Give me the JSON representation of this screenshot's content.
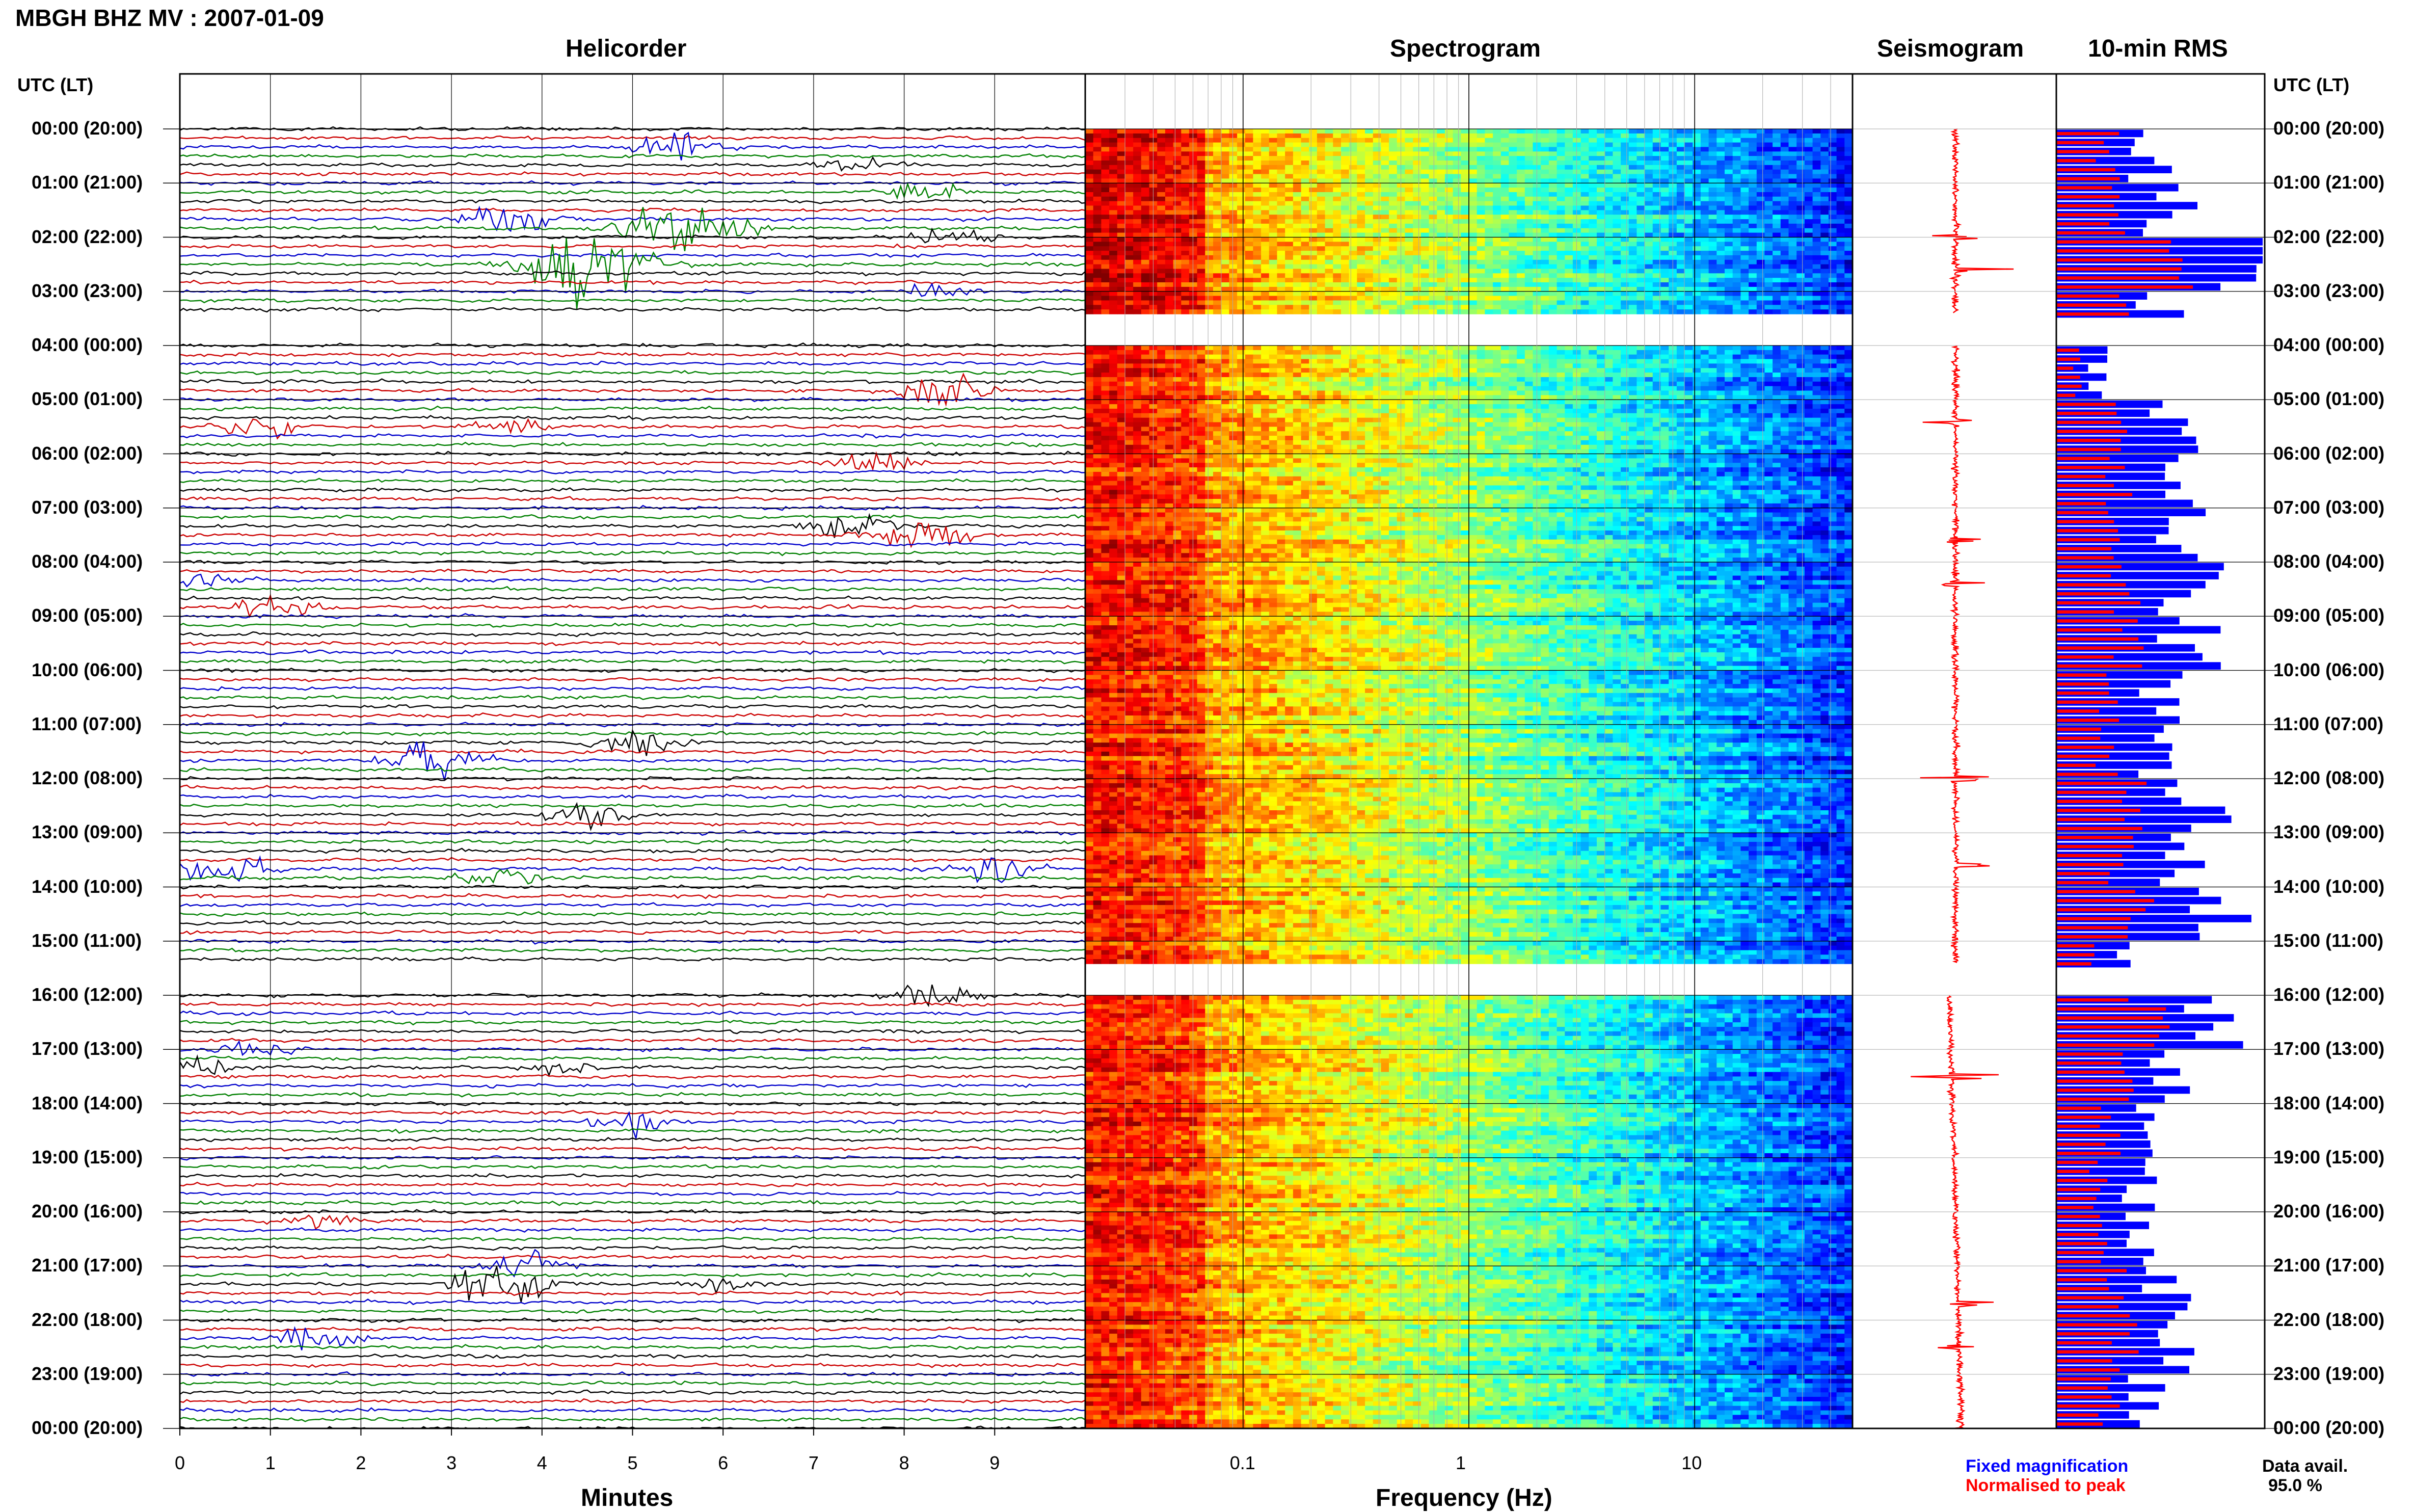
{
  "title": "MBGH BHZ MV : 2007-01-09",
  "panels": {
    "helicorder": "Helicorder",
    "spectrogram": "Spectrogram",
    "seismogram": "Seismogram",
    "rms": "10-min RMS"
  },
  "axis_header": "UTC (LT)",
  "time_labels": [
    "00:00 (20:00)",
    "01:00 (21:00)",
    "02:00 (22:00)",
    "03:00 (23:00)",
    "04:00 (00:00)",
    "05:00 (01:00)",
    "06:00 (02:00)",
    "07:00 (03:00)",
    "08:00 (04:00)",
    "09:00 (05:00)",
    "10:00 (06:00)",
    "11:00 (07:00)",
    "12:00 (08:00)",
    "13:00 (09:00)",
    "14:00 (10:00)",
    "15:00 (11:00)",
    "16:00 (12:00)",
    "17:00 (13:00)",
    "18:00 (14:00)",
    "19:00 (15:00)",
    "20:00 (16:00)",
    "21:00 (17:00)",
    "22:00 (18:00)",
    "23:00 (19:00)",
    "00:00 (20:00)"
  ],
  "legend": {
    "fixed": "Fixed magnification",
    "normalised": "Normalised to peak",
    "avail_label": "Data avail.",
    "avail_value": "95.0 %"
  },
  "colors": {
    "trace_cycle": [
      "#000000",
      "#cc0000",
      "#0000cc",
      "#008000"
    ],
    "seismogram": "#ff0000",
    "rms_fixed": "#0000ff",
    "rms_normalised": "#ff0000"
  },
  "chart_data": [
    {
      "type": "line",
      "name": "helicorder",
      "title": "Helicorder",
      "xlabel": "Minutes",
      "x_ticks": [
        0,
        1,
        2,
        3,
        4,
        5,
        6,
        7,
        8,
        9
      ],
      "xlim": [
        0,
        10
      ],
      "rows_per_hour": 6,
      "hours": 24,
      "gaps_hours": [
        [
          3.4,
          4.0
        ],
        [
          15.4,
          16.0
        ]
      ],
      "events": [
        {
          "hour": 0.3,
          "minute": 5.5,
          "amp": 1.0
        },
        {
          "hour": 0.6,
          "minute": 7.5,
          "amp": 0.9
        },
        {
          "hour": 1.2,
          "minute": 8.2,
          "amp": 0.7
        },
        {
          "hour": 1.6,
          "minute": 3.6,
          "amp": 1.2
        },
        {
          "hour": 1.8,
          "minute": 5.6,
          "amp": 2.2
        },
        {
          "hour": 2.0,
          "minute": 8.5,
          "amp": 0.7
        },
        {
          "hour": 2.5,
          "minute": 4.5,
          "amp": 2.8
        },
        {
          "hour": 3.0,
          "minute": 8.4,
          "amp": 0.6
        },
        {
          "hour": 4.9,
          "minute": 8.4,
          "amp": 1.1
        },
        {
          "hour": 5.5,
          "minute": 0.8,
          "amp": 0.8
        },
        {
          "hour": 5.5,
          "minute": 3.6,
          "amp": 0.8
        },
        {
          "hour": 6.2,
          "minute": 7.7,
          "amp": 0.8
        },
        {
          "hour": 7.3,
          "minute": 7.4,
          "amp": 1.0
        },
        {
          "hour": 7.5,
          "minute": 8.2,
          "amp": 1.3
        },
        {
          "hour": 8.3,
          "minute": 0.3,
          "amp": 0.6
        },
        {
          "hour": 8.8,
          "minute": 1.1,
          "amp": 1.0
        },
        {
          "hour": 11.3,
          "minute": 5.1,
          "amp": 0.9
        },
        {
          "hour": 11.7,
          "minute": 2.8,
          "amp": 1.3
        },
        {
          "hour": 12.6,
          "minute": 4.5,
          "amp": 0.9
        },
        {
          "hour": 13.6,
          "minute": 0.5,
          "amp": 1.0
        },
        {
          "hour": 13.6,
          "minute": 9.0,
          "amp": 1.1
        },
        {
          "hour": 13.8,
          "minute": 3.5,
          "amp": 0.7
        },
        {
          "hour": 16.0,
          "minute": 8.3,
          "amp": 0.9
        },
        {
          "hour": 17.0,
          "minute": 0.8,
          "amp": 0.7
        },
        {
          "hour": 17.3,
          "minute": 4.2,
          "amp": 0.6
        },
        {
          "hour": 17.4,
          "minute": 0.1,
          "amp": 1.1
        },
        {
          "hour": 18.3,
          "minute": 5.0,
          "amp": 0.8
        },
        {
          "hour": 20.1,
          "minute": 1.6,
          "amp": 0.6
        },
        {
          "hour": 21.0,
          "minute": 3.9,
          "amp": 1.0
        },
        {
          "hour": 21.3,
          "minute": 3.6,
          "amp": 1.6
        },
        {
          "hour": 21.4,
          "minute": 6.0,
          "amp": 0.6
        },
        {
          "hour": 22.3,
          "minute": 1.4,
          "amp": 0.9
        }
      ]
    },
    {
      "type": "heatmap",
      "name": "spectrogram",
      "title": "Spectrogram",
      "xlabel": "Frequency (Hz)",
      "x_scale": "log",
      "xlim": [
        0.02,
        50
      ],
      "x_tick_labels": [
        "0.1",
        "1",
        "10"
      ],
      "x_tick_values": [
        0.1,
        1,
        10
      ],
      "colormap": "jet",
      "gaps_hours": [
        [
          3.4,
          4.0
        ],
        [
          15.4,
          16.0
        ]
      ]
    },
    {
      "type": "line",
      "name": "seismogram",
      "title": "Seismogram",
      "hours": 24,
      "gaps_hours": [
        [
          3.4,
          4.0
        ],
        [
          15.4,
          16.0
        ]
      ],
      "spikes": [
        {
          "hour": 2.0,
          "amp": 0.35
        },
        {
          "hour": 2.6,
          "amp": 0.55
        },
        {
          "hour": 5.4,
          "amp": 0.3
        },
        {
          "hour": 7.6,
          "amp": 0.25
        },
        {
          "hour": 8.4,
          "amp": 0.25
        },
        {
          "hour": 12.0,
          "amp": 0.3
        },
        {
          "hour": 13.6,
          "amp": 0.4
        },
        {
          "hour": 17.5,
          "amp": 0.35
        },
        {
          "hour": 21.7,
          "amp": 0.3
        },
        {
          "hour": 22.5,
          "amp": 0.25
        }
      ]
    },
    {
      "type": "bar",
      "name": "rms",
      "title": "10-min RMS",
      "bins_per_hour": 6,
      "hours": 24,
      "fixed_hourly": [
        0.45,
        0.55,
        1.0,
        0.5,
        0.2,
        0.55,
        0.55,
        0.6,
        0.65,
        0.65,
        0.5,
        0.45,
        0.7,
        0.6,
        0.8,
        0.35,
        0.8,
        0.6,
        0.45,
        0.4,
        0.4,
        0.55,
        0.6,
        0.45
      ],
      "normalised_hourly": [
        0.25,
        0.3,
        0.6,
        0.3,
        0.1,
        0.3,
        0.3,
        0.3,
        0.35,
        0.35,
        0.25,
        0.25,
        0.35,
        0.3,
        0.4,
        0.2,
        0.45,
        0.3,
        0.25,
        0.2,
        0.2,
        0.3,
        0.35,
        0.25
      ],
      "gaps_hours": [
        [
          3.4,
          4.0
        ],
        [
          15.4,
          16.0
        ]
      ]
    }
  ]
}
